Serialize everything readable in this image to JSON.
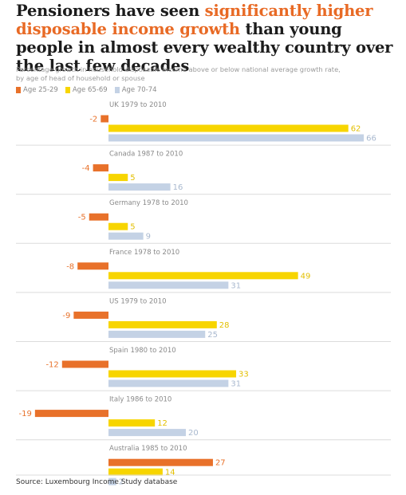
{
  "title": {
    "part1": "Pensioners have seen ",
    "highlight": "significantly higher disposable income growth",
    "part2": " than young people in almost every wealthy country over the last few decades"
  },
  "subtitle_line1": "Percentage growth in household disposable income above or below national average growth rate,",
  "subtitle_line2": "by age of head of household or spouse",
  "source": "Source: Luxembourg Income Study database",
  "colors": {
    "age_25_29": "#e8712a",
    "age_65_69": "#f7d500",
    "age_70_74": "#c4d2e5",
    "value_25_29": "#e8712a",
    "value_65_69": "#e3bf00",
    "value_70_74": "#a9b9cf",
    "highlight": "#e86a25"
  },
  "chart_data": {
    "type": "bar",
    "orientation": "horizontal",
    "legend_position": "top-left",
    "series": [
      {
        "name": "Age 25-29",
        "values": [
          -2,
          -4,
          -5,
          -8,
          -9,
          -12,
          -19,
          27
        ]
      },
      {
        "name": "Age 65-69",
        "values": [
          62,
          5,
          5,
          49,
          28,
          33,
          12,
          14
        ]
      },
      {
        "name": "Age 70-74",
        "values": [
          66,
          16,
          9,
          31,
          25,
          31,
          20,
          2
        ]
      }
    ],
    "categories": [
      "UK 1979 to 2010",
      "Canada 1987 to 2010",
      "Germany 1978 to 2010",
      "France 1978 to 2010",
      "US 1979 to 2010",
      "Spain 1980 to 2010",
      "Italy 1986 to 2010",
      "Australia 1985 to 2010"
    ]
  }
}
